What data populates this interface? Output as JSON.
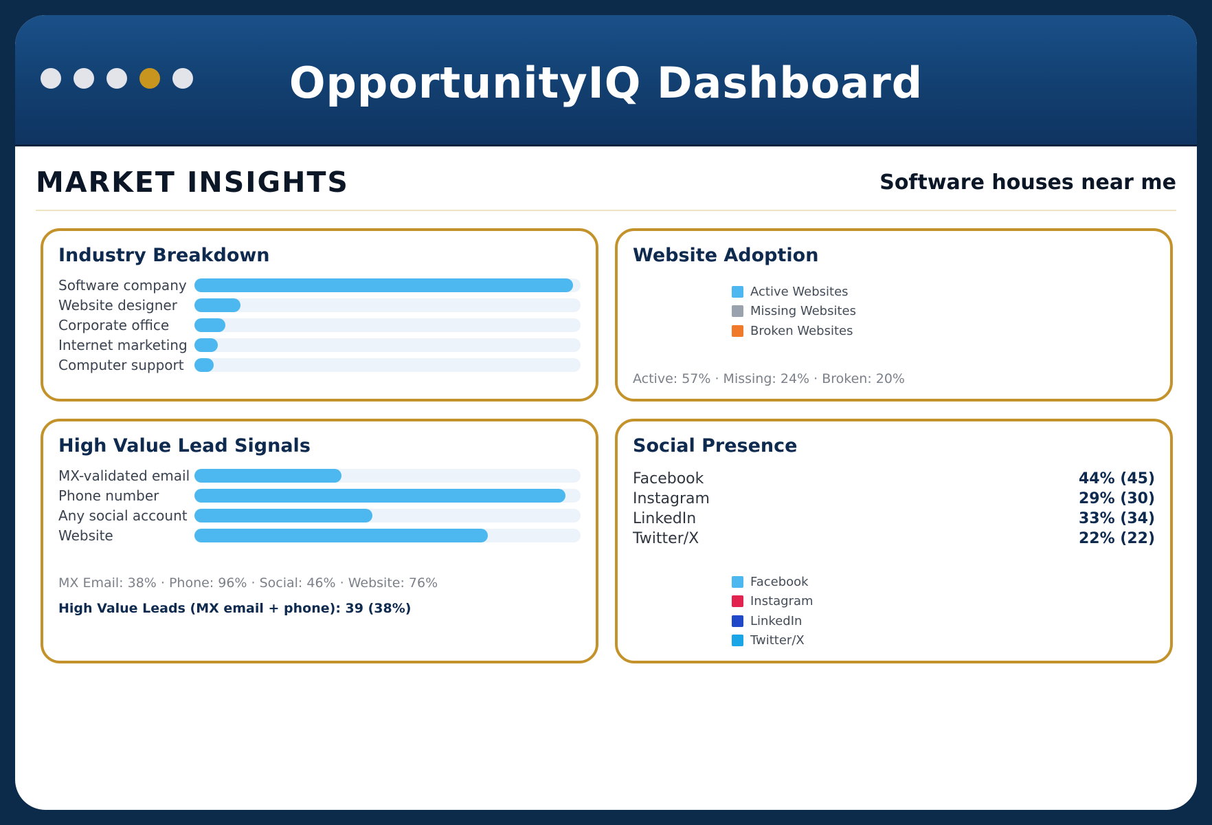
{
  "header": {
    "title": "OpportunityIQ Dashboard",
    "window_dots": [
      "#e2e4ea",
      "#e2e4ea",
      "#e2e4ea",
      "#c8961f",
      "#e2e4ea"
    ]
  },
  "section": {
    "title": "MARKET INSIGHTS",
    "query": "Software houses near me"
  },
  "industry": {
    "title": "Industry Breakdown",
    "items": [
      {
        "label": "Software company",
        "fraction": 0.98
      },
      {
        "label": "Website designer",
        "fraction": 0.12
      },
      {
        "label": "Corporate office",
        "fraction": 0.08
      },
      {
        "label": "Internet marketing",
        "fraction": 0.06
      },
      {
        "label": "Computer support",
        "fraction": 0.05
      }
    ]
  },
  "website": {
    "title": "Website Adoption",
    "legend": [
      {
        "label": "Active Websites",
        "color": "#4db8f0"
      },
      {
        "label": "Missing Websites",
        "color": "#9aa2ad"
      },
      {
        "label": "Broken Websites",
        "color": "#f07a2a"
      }
    ],
    "summary": "Active: 57% · Missing: 24% · Broken: 20%"
  },
  "leads": {
    "title": "High Value Lead Signals",
    "items": [
      {
        "label": "MX-validated email",
        "fraction": 0.38
      },
      {
        "label": "Phone number",
        "fraction": 0.96
      },
      {
        "label": "Any social account",
        "fraction": 0.46
      },
      {
        "label": "Website",
        "fraction": 0.76
      }
    ],
    "summary": "MX Email: 38% · Phone: 96% · Social: 46% · Website: 76%",
    "highlight": "High Value Leads (MX email + phone): 39 (38%)"
  },
  "social": {
    "title": "Social Presence",
    "rows": [
      {
        "name": "Facebook",
        "value": "44% (45)"
      },
      {
        "name": "Instagram",
        "value": "29% (30)"
      },
      {
        "name": "LinkedIn",
        "value": "33% (34)"
      },
      {
        "name": "Twitter/X",
        "value": "22% (22)"
      }
    ],
    "legend": [
      {
        "label": "Facebook",
        "color": "#4db8f0"
      },
      {
        "label": "Instagram",
        "color": "#e2234f"
      },
      {
        "label": "LinkedIn",
        "color": "#2048c9"
      },
      {
        "label": "Twitter/X",
        "color": "#19a5e6"
      }
    ]
  }
}
